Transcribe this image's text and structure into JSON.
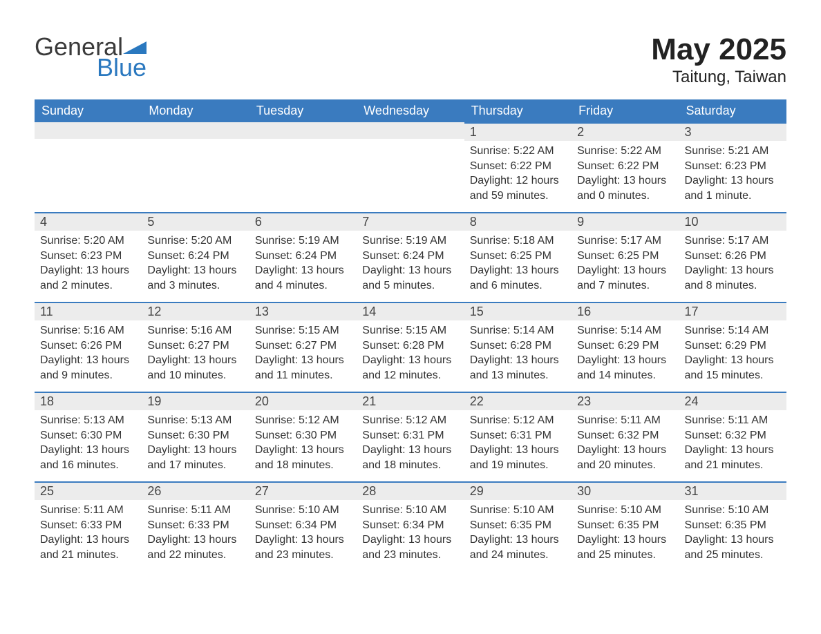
{
  "logo": {
    "word1": "General",
    "word2": "Blue"
  },
  "title": "May 2025",
  "location": "Taitung, Taiwan",
  "colors": {
    "header_bg": "#3a7bbf",
    "header_text": "#ffffff",
    "daynum_bg": "#ececec",
    "row_border": "#3a7bbf",
    "page_bg": "#ffffff",
    "text": "#333333",
    "title_text": "#222222"
  },
  "typography": {
    "title_fontsize": 44,
    "location_fontsize": 24,
    "header_fontsize": 18,
    "daynum_fontsize": 18,
    "body_fontsize": 16
  },
  "calendar": {
    "days_of_week": [
      "Sunday",
      "Monday",
      "Tuesday",
      "Wednesday",
      "Thursday",
      "Friday",
      "Saturday"
    ],
    "first_weekday_index": 4,
    "weeks": [
      [
        null,
        null,
        null,
        null,
        {
          "n": "1",
          "sunrise": "Sunrise: 5:22 AM",
          "sunset": "Sunset: 6:22 PM",
          "daylight1": "Daylight: 12 hours",
          "daylight2": "and 59 minutes."
        },
        {
          "n": "2",
          "sunrise": "Sunrise: 5:22 AM",
          "sunset": "Sunset: 6:22 PM",
          "daylight1": "Daylight: 13 hours",
          "daylight2": "and 0 minutes."
        },
        {
          "n": "3",
          "sunrise": "Sunrise: 5:21 AM",
          "sunset": "Sunset: 6:23 PM",
          "daylight1": "Daylight: 13 hours",
          "daylight2": "and 1 minute."
        }
      ],
      [
        {
          "n": "4",
          "sunrise": "Sunrise: 5:20 AM",
          "sunset": "Sunset: 6:23 PM",
          "daylight1": "Daylight: 13 hours",
          "daylight2": "and 2 minutes."
        },
        {
          "n": "5",
          "sunrise": "Sunrise: 5:20 AM",
          "sunset": "Sunset: 6:24 PM",
          "daylight1": "Daylight: 13 hours",
          "daylight2": "and 3 minutes."
        },
        {
          "n": "6",
          "sunrise": "Sunrise: 5:19 AM",
          "sunset": "Sunset: 6:24 PM",
          "daylight1": "Daylight: 13 hours",
          "daylight2": "and 4 minutes."
        },
        {
          "n": "7",
          "sunrise": "Sunrise: 5:19 AM",
          "sunset": "Sunset: 6:24 PM",
          "daylight1": "Daylight: 13 hours",
          "daylight2": "and 5 minutes."
        },
        {
          "n": "8",
          "sunrise": "Sunrise: 5:18 AM",
          "sunset": "Sunset: 6:25 PM",
          "daylight1": "Daylight: 13 hours",
          "daylight2": "and 6 minutes."
        },
        {
          "n": "9",
          "sunrise": "Sunrise: 5:17 AM",
          "sunset": "Sunset: 6:25 PM",
          "daylight1": "Daylight: 13 hours",
          "daylight2": "and 7 minutes."
        },
        {
          "n": "10",
          "sunrise": "Sunrise: 5:17 AM",
          "sunset": "Sunset: 6:26 PM",
          "daylight1": "Daylight: 13 hours",
          "daylight2": "and 8 minutes."
        }
      ],
      [
        {
          "n": "11",
          "sunrise": "Sunrise: 5:16 AM",
          "sunset": "Sunset: 6:26 PM",
          "daylight1": "Daylight: 13 hours",
          "daylight2": "and 9 minutes."
        },
        {
          "n": "12",
          "sunrise": "Sunrise: 5:16 AM",
          "sunset": "Sunset: 6:27 PM",
          "daylight1": "Daylight: 13 hours",
          "daylight2": "and 10 minutes."
        },
        {
          "n": "13",
          "sunrise": "Sunrise: 5:15 AM",
          "sunset": "Sunset: 6:27 PM",
          "daylight1": "Daylight: 13 hours",
          "daylight2": "and 11 minutes."
        },
        {
          "n": "14",
          "sunrise": "Sunrise: 5:15 AM",
          "sunset": "Sunset: 6:28 PM",
          "daylight1": "Daylight: 13 hours",
          "daylight2": "and 12 minutes."
        },
        {
          "n": "15",
          "sunrise": "Sunrise: 5:14 AM",
          "sunset": "Sunset: 6:28 PM",
          "daylight1": "Daylight: 13 hours",
          "daylight2": "and 13 minutes."
        },
        {
          "n": "16",
          "sunrise": "Sunrise: 5:14 AM",
          "sunset": "Sunset: 6:29 PM",
          "daylight1": "Daylight: 13 hours",
          "daylight2": "and 14 minutes."
        },
        {
          "n": "17",
          "sunrise": "Sunrise: 5:14 AM",
          "sunset": "Sunset: 6:29 PM",
          "daylight1": "Daylight: 13 hours",
          "daylight2": "and 15 minutes."
        }
      ],
      [
        {
          "n": "18",
          "sunrise": "Sunrise: 5:13 AM",
          "sunset": "Sunset: 6:30 PM",
          "daylight1": "Daylight: 13 hours",
          "daylight2": "and 16 minutes."
        },
        {
          "n": "19",
          "sunrise": "Sunrise: 5:13 AM",
          "sunset": "Sunset: 6:30 PM",
          "daylight1": "Daylight: 13 hours",
          "daylight2": "and 17 minutes."
        },
        {
          "n": "20",
          "sunrise": "Sunrise: 5:12 AM",
          "sunset": "Sunset: 6:30 PM",
          "daylight1": "Daylight: 13 hours",
          "daylight2": "and 18 minutes."
        },
        {
          "n": "21",
          "sunrise": "Sunrise: 5:12 AM",
          "sunset": "Sunset: 6:31 PM",
          "daylight1": "Daylight: 13 hours",
          "daylight2": "and 18 minutes."
        },
        {
          "n": "22",
          "sunrise": "Sunrise: 5:12 AM",
          "sunset": "Sunset: 6:31 PM",
          "daylight1": "Daylight: 13 hours",
          "daylight2": "and 19 minutes."
        },
        {
          "n": "23",
          "sunrise": "Sunrise: 5:11 AM",
          "sunset": "Sunset: 6:32 PM",
          "daylight1": "Daylight: 13 hours",
          "daylight2": "and 20 minutes."
        },
        {
          "n": "24",
          "sunrise": "Sunrise: 5:11 AM",
          "sunset": "Sunset: 6:32 PM",
          "daylight1": "Daylight: 13 hours",
          "daylight2": "and 21 minutes."
        }
      ],
      [
        {
          "n": "25",
          "sunrise": "Sunrise: 5:11 AM",
          "sunset": "Sunset: 6:33 PM",
          "daylight1": "Daylight: 13 hours",
          "daylight2": "and 21 minutes."
        },
        {
          "n": "26",
          "sunrise": "Sunrise: 5:11 AM",
          "sunset": "Sunset: 6:33 PM",
          "daylight1": "Daylight: 13 hours",
          "daylight2": "and 22 minutes."
        },
        {
          "n": "27",
          "sunrise": "Sunrise: 5:10 AM",
          "sunset": "Sunset: 6:34 PM",
          "daylight1": "Daylight: 13 hours",
          "daylight2": "and 23 minutes."
        },
        {
          "n": "28",
          "sunrise": "Sunrise: 5:10 AM",
          "sunset": "Sunset: 6:34 PM",
          "daylight1": "Daylight: 13 hours",
          "daylight2": "and 23 minutes."
        },
        {
          "n": "29",
          "sunrise": "Sunrise: 5:10 AM",
          "sunset": "Sunset: 6:35 PM",
          "daylight1": "Daylight: 13 hours",
          "daylight2": "and 24 minutes."
        },
        {
          "n": "30",
          "sunrise": "Sunrise: 5:10 AM",
          "sunset": "Sunset: 6:35 PM",
          "daylight1": "Daylight: 13 hours",
          "daylight2": "and 25 minutes."
        },
        {
          "n": "31",
          "sunrise": "Sunrise: 5:10 AM",
          "sunset": "Sunset: 6:35 PM",
          "daylight1": "Daylight: 13 hours",
          "daylight2": "and 25 minutes."
        }
      ]
    ]
  }
}
